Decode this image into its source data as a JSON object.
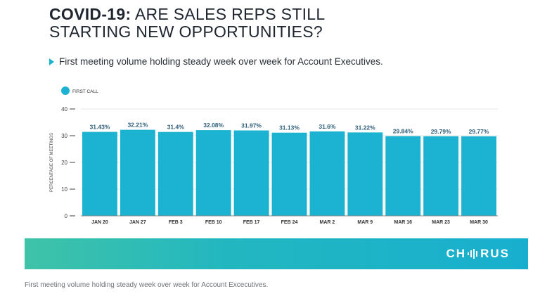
{
  "header": {
    "title_bold": "COVID-19:",
    "title_line1_rest": " ARE SALES REPS STILL",
    "title_line2": "STARTING NEW OPPORTUNITIES?",
    "subtitle": "First meeting volume holding steady week over week for Account Executives."
  },
  "banner": {
    "brand_pre": "CH",
    "brand_post": "RUS"
  },
  "caption": "First meeting volume holding steady week over week for Account Excecutives.",
  "colors": {
    "bar": "#1cb3d2",
    "label": "#2e5f7a",
    "banner_start": "#3fc3a8",
    "banner_end": "#18afcf"
  },
  "chart_data": {
    "type": "bar",
    "legend": [
      {
        "name": "FIRST CALL",
        "position": "top-left"
      }
    ],
    "categories": [
      "JAN 20",
      "JAN 27",
      "FEB 3",
      "FEB 10",
      "FEB 17",
      "FEB 24",
      "MAR 2",
      "MAR 9",
      "MAR 16",
      "MAR 23",
      "MAR 30"
    ],
    "series": [
      {
        "name": "FIRST CALL",
        "values": [
          31.43,
          32.21,
          31.4,
          32.08,
          31.97,
          31.13,
          31.6,
          31.22,
          29.84,
          29.79,
          29.77
        ],
        "labels": [
          "31.43%",
          "32.21%",
          "31.4%",
          "32.08%",
          "31.97%",
          "31.13%",
          "31.6%",
          "31.22%",
          "29.84%",
          "29.79%",
          "29.77%"
        ]
      }
    ],
    "ylabel": "PERCENTAGE OF MEETINGS",
    "xlabel": "",
    "ylim": [
      0,
      40
    ],
    "yticks": [
      0,
      10,
      20,
      30,
      40
    ],
    "grid": true
  }
}
